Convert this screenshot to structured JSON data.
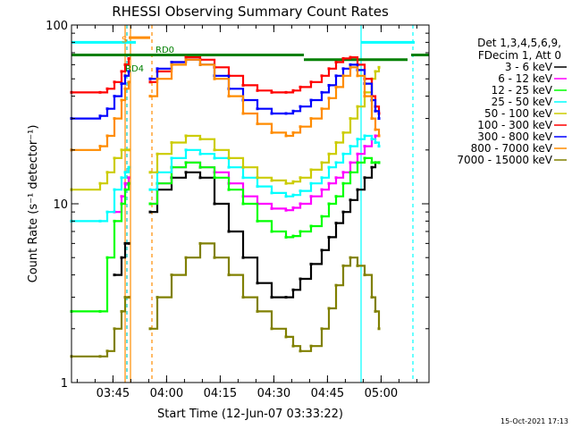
{
  "chart_data": {
    "type": "line",
    "title": "RHESSI Observing Summary Count Rates",
    "xlabel": "Start Time (12-Jun-07 03:33:22)",
    "ylabel": "Count Rate (s⁻¹ detector⁻¹)",
    "x_unit": "minutes after 03:33:22",
    "xlim": [
      0,
      100
    ],
    "ylim": [
      1,
      100
    ],
    "yscale": "log",
    "x_ticks": [
      "03:45",
      "04:00",
      "04:15",
      "04:30",
      "04:45",
      "05:00"
    ],
    "x_tick_values": [
      11.6,
      26.6,
      41.6,
      56.6,
      71.6,
      86.6
    ],
    "y_ticks": [
      "1",
      "10",
      "100"
    ],
    "y_tick_values": [
      1,
      10,
      100
    ],
    "legend_header": [
      "Det 1,3,4,5,6,9,",
      "FDecim 1, Att 0"
    ],
    "legend_position": "right",
    "timestamp": "15-Oct-2021 17:13",
    "annotations": [
      {
        "text": "S",
        "x": 14,
        "y": 80,
        "color": "#ff8c00"
      },
      {
        "text": "RD0",
        "x": 23.5,
        "y": 70,
        "color": "#008000"
      },
      {
        "text": "RD4",
        "x": 15,
        "y": 55,
        "color": "#008000"
      }
    ],
    "series": [
      {
        "name": "3 - 6 keV",
        "color": "#000000",
        "x": [
          0,
          8,
          10,
          12,
          14,
          15,
          16,
          18,
          21,
          22,
          24,
          28,
          32,
          36,
          40,
          44,
          48,
          52,
          56,
          60,
          62,
          64,
          67,
          70,
          72,
          74,
          76,
          78,
          80,
          82,
          84,
          85,
          86
        ],
        "y": [
          null,
          null,
          null,
          4,
          5,
          6,
          6,
          null,
          null,
          9,
          12,
          14,
          15,
          14,
          10,
          7,
          5,
          3.6,
          3,
          3,
          3.3,
          3.8,
          4.6,
          5.5,
          6.5,
          7.8,
          9,
          10.5,
          12,
          14,
          16,
          17,
          17
        ]
      },
      {
        "name": "6 - 12 keV",
        "color": "#ff00ff",
        "x": [
          0,
          8,
          10,
          12,
          14,
          15,
          16,
          18,
          21,
          22,
          24,
          28,
          32,
          36,
          40,
          44,
          48,
          52,
          56,
          60,
          62,
          64,
          67,
          70,
          72,
          74,
          76,
          78,
          80,
          82,
          84,
          85,
          86
        ],
        "y": [
          null,
          null,
          null,
          9,
          11,
          13,
          14,
          null,
          null,
          10,
          13,
          16,
          17,
          16,
          15,
          13,
          11,
          10,
          9.4,
          9.2,
          9.5,
          10,
          11,
          12,
          13,
          14,
          15,
          17,
          19,
          21,
          23,
          24,
          24
        ]
      },
      {
        "name": "12 - 25 keV",
        "color": "#00ff00",
        "x": [
          0,
          8,
          10,
          12,
          14,
          15,
          16,
          18,
          21,
          22,
          24,
          28,
          32,
          36,
          40,
          44,
          48,
          52,
          56,
          60,
          62,
          64,
          67,
          70,
          72,
          74,
          76,
          78,
          80,
          82,
          84,
          85,
          86
        ],
        "y": [
          2.5,
          2.5,
          5,
          8,
          10,
          12,
          13,
          null,
          null,
          10,
          13,
          16,
          17,
          16,
          14,
          12,
          10,
          8,
          7,
          6.5,
          6.6,
          7,
          7.5,
          8.5,
          10,
          11,
          13,
          15,
          17,
          18,
          17,
          17,
          17
        ]
      },
      {
        "name": "25 - 50 keV",
        "color": "#00ffff",
        "x": [
          0,
          8,
          10,
          12,
          14,
          15,
          16,
          18,
          21,
          22,
          24,
          28,
          32,
          36,
          40,
          44,
          48,
          52,
          56,
          60,
          62,
          64,
          67,
          70,
          72,
          74,
          76,
          78,
          80,
          82,
          84,
          85,
          86
        ],
        "y": [
          8,
          8,
          9,
          12,
          14,
          15,
          16,
          null,
          null,
          12,
          15,
          18,
          20,
          19,
          18,
          16,
          14,
          12.5,
          11.5,
          11,
          11.2,
          11.8,
          13,
          14,
          16,
          17,
          19,
          21,
          23,
          24,
          23,
          22,
          21
        ]
      },
      {
        "name": "50 - 100 keV",
        "color": "#cccc00",
        "x": [
          0,
          8,
          10,
          12,
          14,
          15,
          16,
          18,
          21,
          22,
          24,
          28,
          32,
          36,
          40,
          44,
          48,
          52,
          56,
          60,
          62,
          64,
          67,
          70,
          72,
          74,
          76,
          78,
          80,
          82,
          84,
          85,
          86
        ],
        "y": [
          12,
          13,
          15,
          18,
          20,
          20,
          20,
          null,
          null,
          15,
          19,
          22,
          24,
          23,
          20,
          18,
          16,
          14,
          13.5,
          13,
          13.3,
          14,
          15.5,
          17,
          19,
          22,
          25,
          30,
          35,
          42,
          50,
          55,
          58
        ]
      },
      {
        "name": "100 - 300 keV",
        "color": "#ff0000",
        "x": [
          0,
          8,
          10,
          12,
          14,
          15,
          16,
          18,
          21,
          22,
          24,
          28,
          32,
          36,
          40,
          44,
          48,
          52,
          56,
          60,
          62,
          64,
          67,
          70,
          72,
          74,
          76,
          78,
          80,
          82,
          84,
          85,
          86
        ],
        "y": [
          42,
          42,
          44,
          48,
          55,
          60,
          65,
          null,
          null,
          48,
          55,
          62,
          66,
          64,
          58,
          52,
          46,
          43,
          42,
          42,
          43,
          45,
          48,
          52,
          57,
          62,
          65,
          66,
          60,
          50,
          40,
          35,
          32
        ]
      },
      {
        "name": "300 - 800 keV",
        "color": "#0000ff",
        "x": [
          0,
          8,
          10,
          12,
          14,
          15,
          16,
          18,
          21,
          22,
          24,
          28,
          32,
          36,
          40,
          44,
          48,
          52,
          56,
          60,
          62,
          64,
          67,
          70,
          72,
          74,
          76,
          78,
          80,
          82,
          84,
          85,
          86
        ],
        "y": [
          30,
          31,
          34,
          40,
          47,
          52,
          55,
          null,
          null,
          50,
          57,
          62,
          64,
          60,
          52,
          44,
          38,
          34,
          32,
          32,
          33,
          35,
          38,
          42,
          46,
          52,
          57,
          60,
          56,
          47,
          38,
          33,
          30
        ]
      },
      {
        "name": "800 - 7000 keV",
        "color": "#ff8c00",
        "x": [
          0,
          8,
          10,
          12,
          14,
          15,
          16,
          18,
          21,
          22,
          24,
          28,
          32,
          36,
          40,
          44,
          48,
          52,
          56,
          60,
          62,
          64,
          67,
          70,
          72,
          74,
          76,
          78,
          80,
          82,
          84,
          85,
          86
        ],
        "y": [
          20,
          21,
          24,
          30,
          38,
          44,
          48,
          null,
          null,
          40,
          50,
          60,
          64,
          60,
          50,
          40,
          32,
          28,
          25,
          24,
          25,
          27,
          30,
          34,
          39,
          45,
          52,
          58,
          52,
          40,
          30,
          26,
          24
        ]
      },
      {
        "name": "7000 - 15000 keV",
        "color": "#808000",
        "x": [
          0,
          8,
          10,
          12,
          14,
          15,
          16,
          18,
          21,
          22,
          24,
          28,
          32,
          36,
          40,
          44,
          48,
          52,
          56,
          60,
          62,
          64,
          67,
          70,
          72,
          74,
          76,
          78,
          80,
          82,
          84,
          85,
          86
        ],
        "y": [
          1.4,
          1.4,
          1.5,
          2,
          2.5,
          3,
          3,
          null,
          null,
          2,
          3,
          4,
          5,
          6,
          5,
          4,
          3,
          2.5,
          2,
          1.8,
          1.6,
          1.5,
          1.6,
          2,
          2.6,
          3.5,
          4.5,
          5,
          4.5,
          4,
          3,
          2.5,
          2
        ]
      }
    ]
  }
}
